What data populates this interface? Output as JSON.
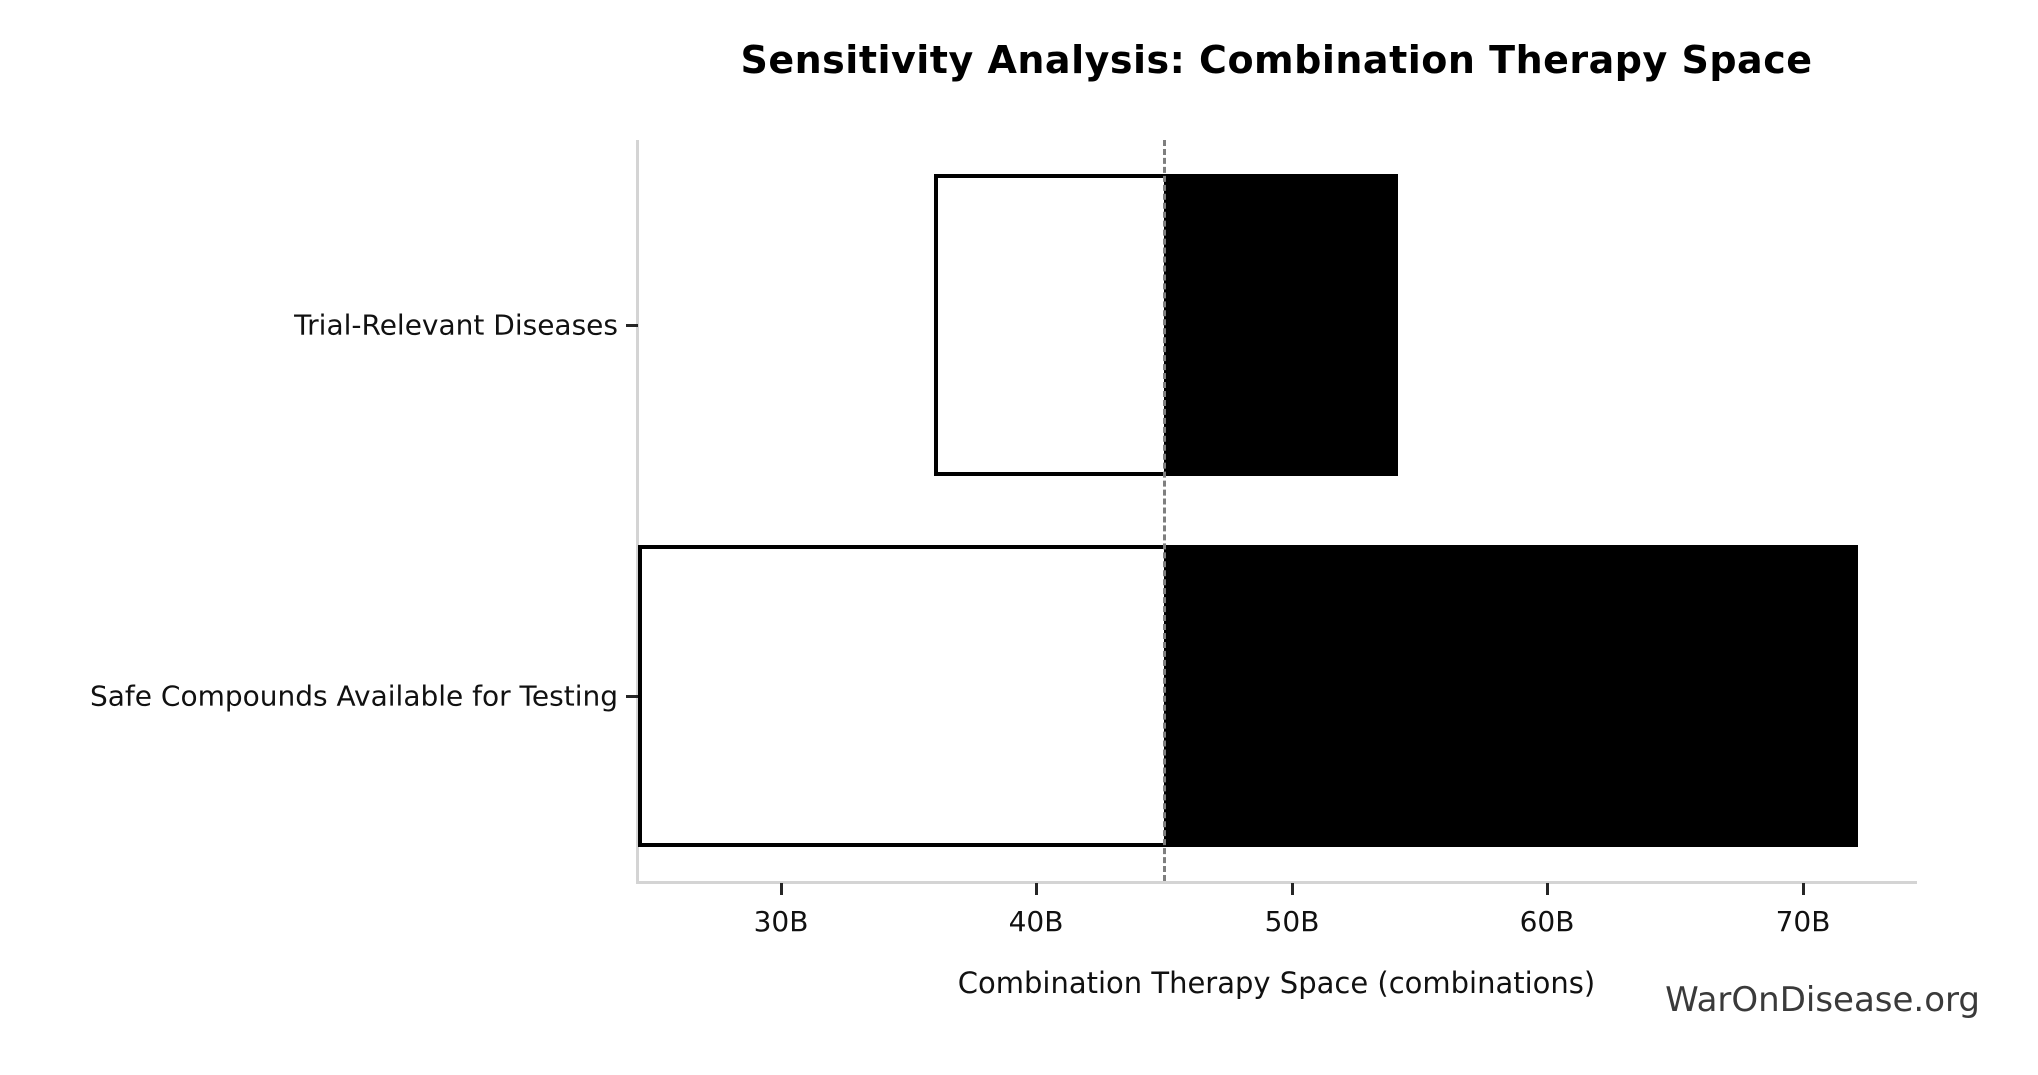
{
  "page": {
    "background_color": "#ffffff"
  },
  "watermark": "WarOnDisease.org",
  "chart_data": {
    "type": "bar",
    "subtype": "tornado_sensitivity",
    "orientation": "horizontal",
    "title": "Sensitivity Analysis: Combination Therapy Space",
    "xlabel": "Combination Therapy Space (combinations)",
    "ylabel": "",
    "unit": "B",
    "grid": false,
    "legend_position": "none",
    "baseline_value": 45,
    "xlim": [
      24.4,
      74.4
    ],
    "x_ticks": [
      {
        "value": 30,
        "label": "30B"
      },
      {
        "value": 40,
        "label": "40B"
      },
      {
        "value": 50,
        "label": "50B"
      },
      {
        "value": 60,
        "label": "60B"
      },
      {
        "value": 70,
        "label": "70B"
      }
    ],
    "categories": [
      "Trial-Relevant Diseases",
      "Safe Compounds Available for Testing"
    ],
    "bars": [
      {
        "label": "Trial-Relevant Diseases",
        "low": 36,
        "high": 54,
        "low_clipped_at_axis": false
      },
      {
        "label": "Safe Compounds Available for Testing",
        "low": 24.4,
        "high": 72,
        "low_clipped_at_axis": true
      }
    ],
    "colors": {
      "low_segment_fill": "#ffffff",
      "high_segment_fill": "#000000",
      "bar_edge": "#000000",
      "baseline_line": "#7f7f7f",
      "spine": "#d4d4d4",
      "tick": "#262626",
      "text": "#111111",
      "title_text": "#000000",
      "watermark_text": "#3a3a3a"
    }
  }
}
